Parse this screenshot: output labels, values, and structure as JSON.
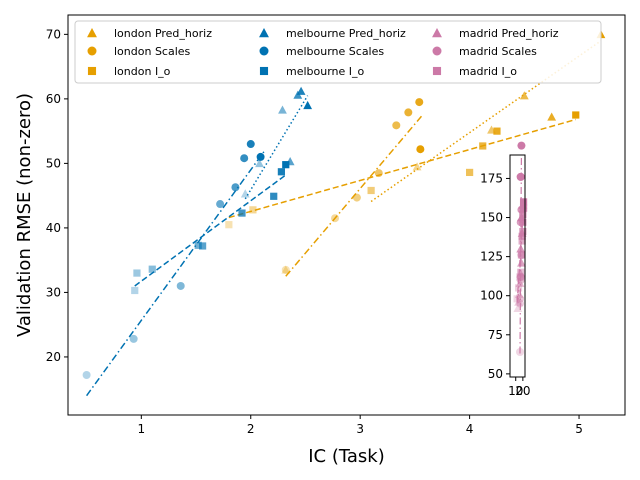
{
  "chart_data": [
    {
      "type": "scatter",
      "title": "",
      "xlabel": "IC (Task)",
      "ylabel": "Validation RMSE (non-zero)",
      "xlim": [
        0.33,
        5.42
      ],
      "ylim": [
        11,
        73
      ],
      "xticks": [
        1,
        2,
        3,
        4,
        5
      ],
      "yticks": [
        20,
        30,
        40,
        50,
        60,
        70
      ],
      "grid": false,
      "legend_position": "top",
      "legend_columns": 3,
      "series": [
        {
          "name": "london Pred_horiz",
          "city": "london",
          "marker": "triangle",
          "color": "#E69F00",
          "points": [
            [
              2.32,
              33.5
            ],
            [
              3.52,
              49.5
            ],
            [
              4.2,
              55.2
            ],
            [
              4.5,
              60.5
            ],
            [
              4.75,
              57.2
            ],
            [
              5.2,
              70.0
            ]
          ],
          "fit": {
            "style": "dotted",
            "x": [
              3.1,
              5.2
            ],
            "y": [
              44.1,
              69.0
            ]
          }
        },
        {
          "name": "london Scales",
          "city": "london",
          "marker": "circle",
          "color": "#E69F00",
          "points": [
            [
              2.32,
              33.5
            ],
            [
              2.77,
              41.5
            ],
            [
              2.97,
              44.7
            ],
            [
              3.17,
              48.5
            ],
            [
              3.33,
              55.9
            ],
            [
              3.44,
              57.9
            ],
            [
              3.54,
              59.5
            ],
            [
              3.55,
              52.2
            ]
          ],
          "fit": {
            "style": "dashdot",
            "x": [
              2.32,
              3.56
            ],
            "y": [
              32.5,
              57.3
            ]
          }
        },
        {
          "name": "london I_o",
          "city": "london",
          "marker": "square",
          "color": "#E69F00",
          "points": [
            [
              1.8,
              40.5
            ],
            [
              2.02,
              42.8
            ],
            [
              3.1,
              45.8
            ],
            [
              4.0,
              48.6
            ],
            [
              4.12,
              52.7
            ],
            [
              4.25,
              55.0
            ],
            [
              4.97,
              57.5
            ]
          ],
          "fit": {
            "style": "dashed",
            "x": [
              1.8,
              4.97
            ],
            "y": [
              41.6,
              56.8
            ]
          }
        },
        {
          "name": "melbourne Pred_horiz",
          "city": "melbourne",
          "marker": "triangle",
          "color": "#0072B2",
          "points": [
            [
              1.95,
              45.3
            ],
            [
              2.08,
              50.0
            ],
            [
              2.29,
              58.3
            ],
            [
              2.36,
              50.3
            ],
            [
              2.43,
              60.6
            ],
            [
              2.46,
              61.2
            ],
            [
              2.52,
              59.0
            ]
          ],
          "fit": {
            "style": "dotted",
            "x": [
              1.95,
              2.52
            ],
            "y": [
              44.5,
              60.5
            ]
          }
        },
        {
          "name": "melbourne Scales",
          "city": "melbourne",
          "marker": "circle",
          "color": "#0072B2",
          "points": [
            [
              0.5,
              17.2
            ],
            [
              0.93,
              22.8
            ],
            [
              1.36,
              31.0
            ],
            [
              1.72,
              43.7
            ],
            [
              1.86,
              46.3
            ],
            [
              1.94,
              50.8
            ],
            [
              2.0,
              53.0
            ],
            [
              2.09,
              51.0
            ]
          ],
          "fit": {
            "style": "dashdot",
            "x": [
              0.5,
              2.12
            ],
            "y": [
              14.0,
              51.8
            ]
          }
        },
        {
          "name": "melbourne I_o",
          "city": "melbourne",
          "marker": "square",
          "color": "#0072B2",
          "points": [
            [
              0.94,
              30.3
            ],
            [
              0.96,
              33.0
            ],
            [
              1.1,
              33.6
            ],
            [
              1.52,
              37.3
            ],
            [
              1.56,
              37.2
            ],
            [
              1.92,
              42.3
            ],
            [
              2.21,
              44.9
            ],
            [
              2.28,
              48.7
            ],
            [
              2.32,
              49.8
            ]
          ],
          "fit": {
            "style": "dashed",
            "x": [
              0.94,
              2.32
            ],
            "y": [
              31.0,
              48.2
            ]
          }
        }
      ]
    },
    {
      "type": "scatter",
      "title": "",
      "xlabel": "",
      "ylabel": "",
      "xlim": [
        2,
        23
      ],
      "ylim": [
        48,
        190
      ],
      "xticks": [
        10,
        20
      ],
      "xtick_labels": [
        "10",
        "20"
      ],
      "yticks": [
        50,
        75,
        100,
        125,
        150,
        175
      ],
      "grid": false,
      "series": [
        {
          "name": "madrid Pred_horiz",
          "city": "madrid",
          "marker": "triangle",
          "color": "#CC79A7",
          "points": [
            [
              13,
              92
            ],
            [
              14,
              96
            ],
            [
              15,
              101
            ],
            [
              16,
              108
            ],
            [
              17,
              114
            ],
            [
              18,
              121
            ],
            [
              17,
              130
            ],
            [
              19,
              140
            ],
            [
              18,
              150
            ],
            [
              20,
              158
            ]
          ],
          "fit": {
            "style": "dotted",
            "x": [
              13,
              20
            ],
            "y": [
              95,
              150
            ]
          }
        },
        {
          "name": "madrid Scales",
          "city": "madrid",
          "marker": "circle",
          "color": "#CC79A7",
          "points": [
            [
              16,
              64
            ],
            [
              16,
              95
            ],
            [
              16,
              98
            ],
            [
              17,
              110
            ],
            [
              17,
              112
            ],
            [
              18,
              126
            ],
            [
              17,
              147
            ],
            [
              18,
              155
            ],
            [
              17,
              176
            ],
            [
              17,
              176
            ],
            [
              18,
              196
            ]
          ],
          "fit": {
            "style": "dashdot",
            "x": [
              16,
              18
            ],
            "y": [
              63,
              190
            ]
          }
        },
        {
          "name": "madrid I_o",
          "city": "madrid",
          "marker": "square",
          "color": "#CC79A7",
          "points": [
            [
              12,
              98
            ],
            [
              14,
              105
            ],
            [
              16,
              112
            ],
            [
              17,
              115
            ],
            [
              18,
              126
            ],
            [
              19,
              135
            ],
            [
              19,
              138
            ],
            [
              20,
              141
            ],
            [
              20,
              147
            ],
            [
              20,
              152
            ],
            [
              21,
              156
            ],
            [
              21,
              160
            ]
          ],
          "fit": {
            "style": "dashed",
            "x": [
              12,
              21
            ],
            "y": [
              96,
              158
            ]
          }
        }
      ]
    }
  ],
  "legend": {
    "entries": [
      {
        "label": "london Pred_horiz",
        "marker": "triangle",
        "color": "#E69F00"
      },
      {
        "label": "melbourne Pred_horiz",
        "marker": "triangle",
        "color": "#0072B2"
      },
      {
        "label": "madrid Pred_horiz",
        "marker": "triangle",
        "color": "#CC79A7"
      },
      {
        "label": "london Scales",
        "marker": "circle",
        "color": "#E69F00"
      },
      {
        "label": "melbourne Scales",
        "marker": "circle",
        "color": "#0072B2"
      },
      {
        "label": "madrid Scales",
        "marker": "circle",
        "color": "#CC79A7"
      },
      {
        "label": "london I_o",
        "marker": "square",
        "color": "#E69F00"
      },
      {
        "label": "melbourne I_o",
        "marker": "square",
        "color": "#0072B2"
      },
      {
        "label": "madrid I_o",
        "marker": "square",
        "color": "#CC79A7"
      }
    ]
  }
}
